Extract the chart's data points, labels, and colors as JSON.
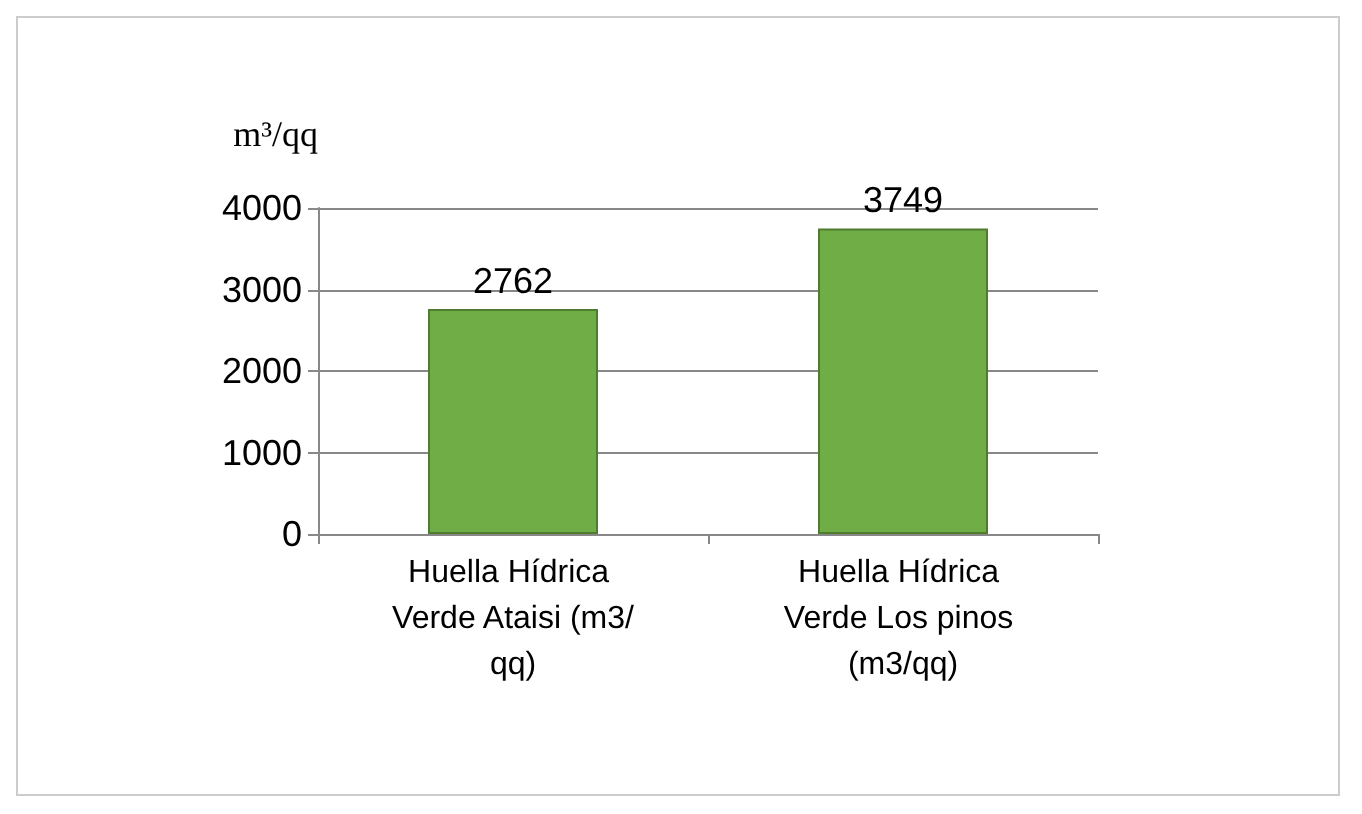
{
  "chart_data": {
    "type": "bar",
    "ylabel": "m³/qq",
    "categories": [
      "Huella Hídrica Verde Ataisi (m3/qq)",
      "Huella Hídrica Verde Los pinos (m3/qq)"
    ],
    "values": [
      2762,
      3749
    ],
    "color": "#70ad47",
    "ylim": [
      0,
      4000
    ],
    "yticks": [
      0,
      1000,
      2000,
      3000,
      4000
    ],
    "grid": "y",
    "data_labels": true
  }
}
